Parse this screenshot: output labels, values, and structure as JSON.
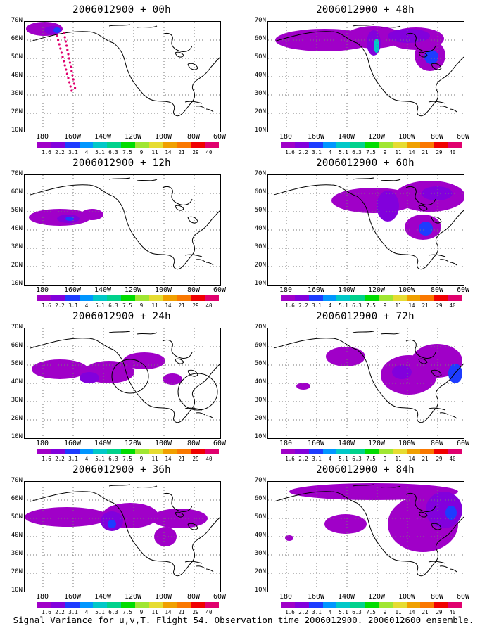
{
  "caption": "Signal Variance for u,v,T. Flight 54. Observation time 2006012900. 2006012600 ensemble.",
  "panels": [
    {
      "title": "2006012900 + 00h"
    },
    {
      "title": "2006012900 + 48h"
    },
    {
      "title": "2006012900 + 12h"
    },
    {
      "title": "2006012900 + 60h"
    },
    {
      "title": "2006012900 + 24h"
    },
    {
      "title": "2006012900 + 72h"
    },
    {
      "title": "2006012900 + 36h"
    },
    {
      "title": "2006012900 + 84h"
    }
  ],
  "axes": {
    "lat_labels": [
      "70N",
      "60N",
      "50N",
      "40N",
      "30N",
      "20N",
      "10N"
    ],
    "lon_labels": [
      "180",
      "160W",
      "140W",
      "120W",
      "100W",
      "80W",
      "60W"
    ]
  },
  "colorbar": {
    "labels": [
      "1.6",
      "2.2",
      "3.1",
      "4",
      "5.1",
      "6.3",
      "7.5",
      "9",
      "11",
      "14",
      "21",
      "29",
      "40"
    ],
    "colors": [
      "#a000c8",
      "#8200dc",
      "#1e3cff",
      "#0096ff",
      "#00c8c8",
      "#00d28c",
      "#00dc00",
      "#a0e632",
      "#e6dc32",
      "#f0a000",
      "#fa7800",
      "#f00000",
      "#e0006e"
    ]
  }
}
